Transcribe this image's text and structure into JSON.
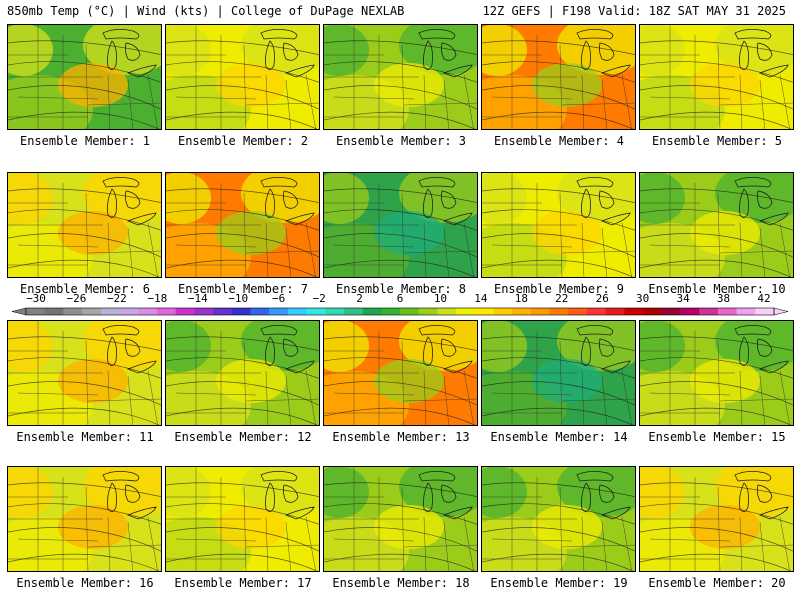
{
  "header": {
    "left_title": "850mb Temp (°C) | Wind (kts) | College of DuPage NEXLAB",
    "right_title": "12Z GEFS | F198 Valid: 18Z SAT MAY 31 2025"
  },
  "members": [
    {
      "label": "Ensemble Member: 1",
      "palette": "cool-west"
    },
    {
      "label": "Ensemble Member: 2",
      "palette": "mixed"
    },
    {
      "label": "Ensemble Member: 3",
      "palette": "mixed-green"
    },
    {
      "label": "Ensemble Member: 4",
      "palette": "warm-west"
    },
    {
      "label": "Ensemble Member: 5",
      "palette": "mixed"
    },
    {
      "label": "Ensemble Member: 6",
      "palette": "warm"
    },
    {
      "label": "Ensemble Member: 7",
      "palette": "warm-west"
    },
    {
      "label": "Ensemble Member: 8",
      "palette": "cool"
    },
    {
      "label": "Ensemble Member: 9",
      "palette": "mixed"
    },
    {
      "label": "Ensemble Member: 10",
      "palette": "mixed-green"
    },
    {
      "label": "Ensemble Member: 11",
      "palette": "warm"
    },
    {
      "label": "Ensemble Member: 12",
      "palette": "mixed-green"
    },
    {
      "label": "Ensemble Member: 13",
      "palette": "warm-west"
    },
    {
      "label": "Ensemble Member: 14",
      "palette": "cool"
    },
    {
      "label": "Ensemble Member: 15",
      "palette": "mixed-green"
    },
    {
      "label": "Ensemble Member: 16",
      "palette": "warm"
    },
    {
      "label": "Ensemble Member: 17",
      "palette": "mixed"
    },
    {
      "label": "Ensemble Member: 18",
      "palette": "mixed-green"
    },
    {
      "label": "Ensemble Member: 19",
      "palette": "mixed-green"
    },
    {
      "label": "Ensemble Member: 20",
      "palette": "warm"
    }
  ],
  "colorbar": {
    "tick_labels": [
      "−30",
      "−26",
      "−22",
      "−18",
      "−14",
      "−10",
      "−6",
      "−2",
      "2",
      "6",
      "10",
      "14",
      "18",
      "22",
      "26",
      "30",
      "34",
      "38",
      "42"
    ],
    "colors": [
      "#808080",
      "#737373",
      "#8f8f8f",
      "#a6a6a6",
      "#b3b3d9",
      "#c7a6e6",
      "#d98ce6",
      "#e066e0",
      "#cc33cc",
      "#9933cc",
      "#6633cc",
      "#3333cc",
      "#3366e6",
      "#3399ff",
      "#33ccff",
      "#33e6e6",
      "#33d9b3",
      "#33c08c",
      "#1fa64d",
      "#33b333",
      "#66c21a",
      "#99d11a",
      "#cce01a",
      "#f0f000",
      "#ffe600",
      "#ffcc00",
      "#ffb300",
      "#ff9900",
      "#ff7a00",
      "#ff5a1a",
      "#ff3333",
      "#e61a1a",
      "#cc0000",
      "#aa0000",
      "#990033",
      "#b3006b",
      "#cc3399",
      "#e666cc",
      "#f0a0f0",
      "#f7d0f7"
    ]
  },
  "palettes": {
    "warm": [
      "#d7e21a",
      "#f0ec00",
      "#ffd400",
      "#ffb000"
    ],
    "warm-west": [
      "#ff7a00",
      "#ffb000",
      "#f0ec00",
      "#9ccc1a"
    ],
    "mixed": [
      "#f0ec00",
      "#b9d81a",
      "#d7e21a",
      "#ffd400"
    ],
    "mixed-green": [
      "#9ccc1a",
      "#d7e21a",
      "#4bb030",
      "#f0ec00"
    ],
    "cool": [
      "#2ea34a",
      "#58b02a",
      "#9ccc1a",
      "#1fae7a"
    ],
    "cool-west": [
      "#4bb030",
      "#9ccc1a",
      "#d7e21a",
      "#ffb000"
    ]
  }
}
